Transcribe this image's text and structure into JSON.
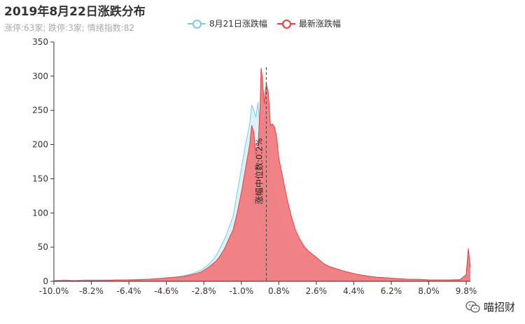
{
  "header": {
    "title": "2019年8月22日涨跌分布",
    "subtitle": "涨停:63家; 跌停:3家; 情绪指数:82"
  },
  "watermark": {
    "text": "喵招财",
    "icon": "wechat-icon"
  },
  "colors": {
    "prev": "#7ec9ea",
    "prev_fill": "#d9f0f8",
    "latest": "#f23c3c",
    "latest_fill": "#f07b80"
  },
  "chart_data": {
    "type": "area",
    "legend_position": "top-center",
    "x_unit": "%",
    "xlim": [
      -10.0,
      10.0
    ],
    "ylim": [
      0,
      350
    ],
    "yticks": [
      0,
      50,
      100,
      150,
      200,
      250,
      300,
      350
    ],
    "xtick_labels": [
      "-10.0%",
      "-8.2%",
      "-6.4%",
      "-4.6%",
      "-2.8%",
      "-1.0%",
      "0.8%",
      "2.6%",
      "4.4%",
      "6.2%",
      "8.0%",
      "9.8%"
    ],
    "xtick_values": [
      -10.0,
      -8.2,
      -6.4,
      -4.6,
      -2.8,
      -1.0,
      0.8,
      2.6,
      4.4,
      6.2,
      8.0,
      9.8
    ],
    "median_line": {
      "x": 0.2,
      "label": "涨幅中位数:0.2%"
    },
    "series": [
      {
        "name": "8月21日涨跌幅",
        "points": [
          [
            -10.0,
            1
          ],
          [
            -9.5,
            2
          ],
          [
            -9.0,
            1
          ],
          [
            -8.5,
            2
          ],
          [
            -8.0,
            2
          ],
          [
            -7.5,
            2
          ],
          [
            -7.0,
            2
          ],
          [
            -6.5,
            2
          ],
          [
            -6.0,
            3
          ],
          [
            -5.5,
            3
          ],
          [
            -5.0,
            4
          ],
          [
            -4.6,
            5
          ],
          [
            -4.2,
            6
          ],
          [
            -3.8,
            8
          ],
          [
            -3.5,
            10
          ],
          [
            -3.2,
            13
          ],
          [
            -2.9,
            17
          ],
          [
            -2.6,
            24
          ],
          [
            -2.4,
            30
          ],
          [
            -2.2,
            38
          ],
          [
            -2.0,
            50
          ],
          [
            -1.8,
            62
          ],
          [
            -1.6,
            78
          ],
          [
            -1.4,
            95
          ],
          [
            -1.2,
            130
          ],
          [
            -1.0,
            165
          ],
          [
            -0.8,
            200
          ],
          [
            -0.6,
            230
          ],
          [
            -0.5,
            258
          ],
          [
            -0.4,
            250
          ],
          [
            -0.3,
            240
          ],
          [
            -0.2,
            262
          ],
          [
            -0.1,
            220
          ],
          [
            0.0,
            205
          ],
          [
            0.1,
            240
          ],
          [
            0.2,
            222
          ],
          [
            0.3,
            190
          ],
          [
            0.4,
            160
          ],
          [
            0.5,
            150
          ],
          [
            0.6,
            120
          ],
          [
            0.7,
            110
          ],
          [
            0.8,
            100
          ],
          [
            1.0,
            80
          ],
          [
            1.2,
            65
          ],
          [
            1.4,
            55
          ],
          [
            1.6,
            48
          ],
          [
            1.8,
            42
          ],
          [
            2.0,
            38
          ],
          [
            2.2,
            33
          ],
          [
            2.4,
            28
          ],
          [
            2.6,
            25
          ],
          [
            2.8,
            22
          ],
          [
            3.0,
            20
          ],
          [
            3.4,
            18
          ],
          [
            3.8,
            15
          ],
          [
            4.2,
            12
          ],
          [
            4.6,
            10
          ],
          [
            5.0,
            8
          ],
          [
            5.5,
            6
          ],
          [
            6.0,
            5
          ],
          [
            6.5,
            4
          ],
          [
            7.0,
            3
          ],
          [
            7.5,
            3
          ],
          [
            8.0,
            2
          ],
          [
            8.5,
            2
          ],
          [
            9.0,
            2
          ],
          [
            9.5,
            3
          ],
          [
            9.8,
            8
          ],
          [
            9.9,
            30
          ],
          [
            10.0,
            12
          ]
        ]
      },
      {
        "name": "最新涨跌幅",
        "points": [
          [
            -10.0,
            1
          ],
          [
            -9.5,
            1
          ],
          [
            -9.0,
            1
          ],
          [
            -8.5,
            1
          ],
          [
            -8.0,
            1
          ],
          [
            -7.5,
            1
          ],
          [
            -7.0,
            2
          ],
          [
            -6.5,
            2
          ],
          [
            -6.0,
            2
          ],
          [
            -5.5,
            3
          ],
          [
            -5.0,
            4
          ],
          [
            -4.6,
            5
          ],
          [
            -4.2,
            6
          ],
          [
            -3.8,
            7
          ],
          [
            -3.5,
            9
          ],
          [
            -3.2,
            11
          ],
          [
            -2.9,
            14
          ],
          [
            -2.6,
            20
          ],
          [
            -2.4,
            25
          ],
          [
            -2.2,
            30
          ],
          [
            -2.0,
            38
          ],
          [
            -1.8,
            48
          ],
          [
            -1.6,
            62
          ],
          [
            -1.4,
            75
          ],
          [
            -1.2,
            100
          ],
          [
            -1.0,
            130
          ],
          [
            -0.8,
            165
          ],
          [
            -0.6,
            200
          ],
          [
            -0.5,
            228
          ],
          [
            -0.4,
            218
          ],
          [
            -0.3,
            185
          ],
          [
            -0.2,
            195
          ],
          [
            -0.1,
            255
          ],
          [
            -0.05,
            312
          ],
          [
            0.0,
            300
          ],
          [
            0.1,
            260
          ],
          [
            0.2,
            290
          ],
          [
            0.3,
            275
          ],
          [
            0.4,
            228
          ],
          [
            0.5,
            230
          ],
          [
            0.6,
            225
          ],
          [
            0.7,
            210
          ],
          [
            0.8,
            180
          ],
          [
            1.0,
            150
          ],
          [
            1.2,
            120
          ],
          [
            1.4,
            95
          ],
          [
            1.6,
            75
          ],
          [
            1.8,
            62
          ],
          [
            2.0,
            52
          ],
          [
            2.2,
            45
          ],
          [
            2.4,
            40
          ],
          [
            2.6,
            35
          ],
          [
            2.8,
            30
          ],
          [
            3.0,
            25
          ],
          [
            3.2,
            22
          ],
          [
            3.4,
            20
          ],
          [
            3.8,
            16
          ],
          [
            4.2,
            13
          ],
          [
            4.6,
            10
          ],
          [
            5.0,
            8
          ],
          [
            5.5,
            6
          ],
          [
            6.0,
            5
          ],
          [
            6.5,
            4
          ],
          [
            7.0,
            3
          ],
          [
            7.5,
            3
          ],
          [
            8.0,
            2
          ],
          [
            8.5,
            2
          ],
          [
            9.0,
            2
          ],
          [
            9.5,
            2
          ],
          [
            9.8,
            10
          ],
          [
            9.9,
            48
          ],
          [
            10.0,
            20
          ]
        ]
      }
    ]
  }
}
